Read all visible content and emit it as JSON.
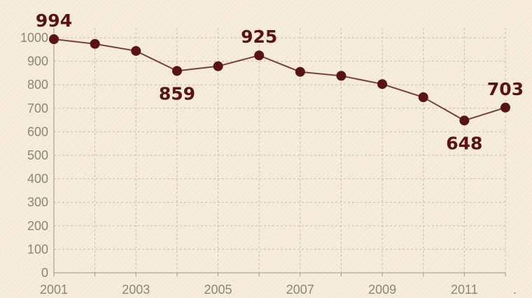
{
  "chart_data": {
    "type": "line",
    "title": "",
    "xlabel": "",
    "ylabel": "",
    "x": [
      2001,
      2002,
      2003,
      2004,
      2005,
      2006,
      2007,
      2008,
      2009,
      2010,
      2011,
      2012
    ],
    "x_tick_labels": [
      "2001",
      "2003",
      "2005",
      "2007",
      "2009",
      "2011"
    ],
    "values": [
      994,
      974,
      944,
      859,
      879,
      925,
      855,
      838,
      803,
      747,
      648,
      703
    ],
    "y_ticks": [
      0,
      100,
      200,
      300,
      400,
      500,
      600,
      700,
      800,
      900,
      1000
    ],
    "ylim": [
      0,
      1000
    ],
    "data_labels": [
      {
        "index": 0,
        "text": "994",
        "placement": "above"
      },
      {
        "index": 3,
        "text": "859",
        "placement": "below"
      },
      {
        "index": 5,
        "text": "925",
        "placement": "above"
      },
      {
        "index": 10,
        "text": "648",
        "placement": "below"
      },
      {
        "index": 11,
        "text": "703",
        "placement": "above"
      }
    ],
    "trailing_text": ".",
    "grid": true,
    "colors": {
      "line": "#7a3d3d",
      "marker": "#5a1313",
      "label": "#5a1313",
      "background": "#f4ead5",
      "grid": "#c7bfa9",
      "tick": "#8c857b"
    }
  }
}
